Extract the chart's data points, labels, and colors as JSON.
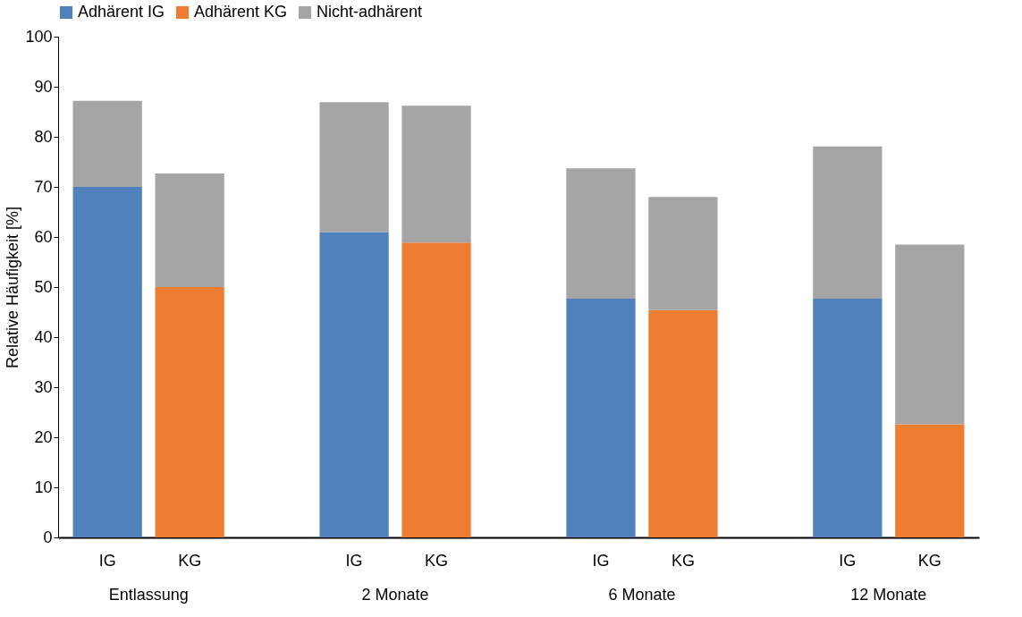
{
  "chart_data": {
    "type": "bar",
    "stacked": true,
    "ylabel": "Relative Häufigkeit [%]",
    "categories": [
      "IG",
      "KG",
      "IG",
      "KG",
      "IG",
      "KG",
      "IG",
      "KG"
    ],
    "annotations": [
      "Entlassung",
      "2 Monate",
      "6 Monate",
      "12 Monate"
    ],
    "series": [
      {
        "name": "Adhärent IG",
        "color": "#4f81bd",
        "values": [
          70,
          null,
          61,
          null,
          47.7,
          null,
          47.7,
          null
        ]
      },
      {
        "name": "Adhärent KG",
        "color": "#ed7d31",
        "values": [
          null,
          50,
          null,
          58.9,
          null,
          45.4,
          null,
          22.6
        ]
      },
      {
        "name": "Nicht-adhärent",
        "color": "#a5a5a5",
        "values": [
          17.2,
          22.7,
          25.9,
          27.3,
          26,
          22.6,
          30.4,
          35.9
        ]
      }
    ],
    "ylim": [
      0,
      100
    ],
    "yticks": [
      0,
      10,
      20,
      30,
      40,
      50,
      60,
      70,
      80,
      90,
      100
    ],
    "grid": false,
    "legend": "top"
  }
}
